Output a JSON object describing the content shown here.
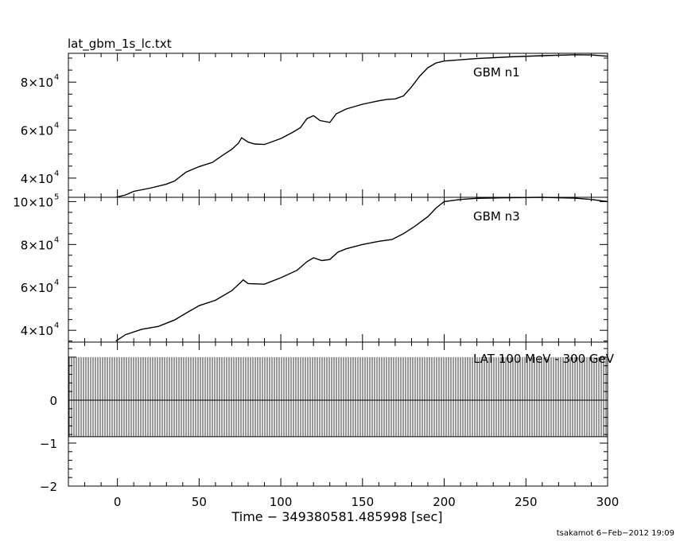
{
  "chart_data": [
    {
      "type": "line",
      "title": "lat_gbm_1s_lc.txt",
      "ylim": [
        32000,
        92000
      ],
      "yticks": [
        {
          "value": 40000,
          "mantissa": "4",
          "exp": "4"
        },
        {
          "value": 60000,
          "mantissa": "6",
          "exp": "4"
        },
        {
          "value": 80000,
          "mantissa": "8",
          "exp": "4"
        }
      ],
      "series": [
        {
          "name": "GBM n1",
          "points": [
            [
              -1,
              31000
            ],
            [
              5,
              33000
            ],
            [
              10,
              34500
            ],
            [
              20,
              35800
            ],
            [
              30,
              37500
            ],
            [
              35,
              38800
            ],
            [
              42,
              42500
            ],
            [
              50,
              44800
            ],
            [
              58,
              46500
            ],
            [
              65,
              49800
            ],
            [
              70,
              52000
            ],
            [
              74,
              54500
            ],
            [
              76,
              56800
            ],
            [
              80,
              55000
            ],
            [
              84,
              54200
            ],
            [
              90,
              54000
            ],
            [
              100,
              56500
            ],
            [
              107,
              59000
            ],
            [
              112,
              61000
            ],
            [
              116,
              64800
            ],
            [
              120,
              66000
            ],
            [
              124,
              64000
            ],
            [
              130,
              63200
            ],
            [
              134,
              66800
            ],
            [
              140,
              68800
            ],
            [
              150,
              70800
            ],
            [
              160,
              72200
            ],
            [
              165,
              72800
            ],
            [
              170,
              73000
            ],
            [
              175,
              74200
            ],
            [
              180,
              78000
            ],
            [
              185,
              82500
            ],
            [
              190,
              86000
            ],
            [
              195,
              88000
            ],
            [
              200,
              88800
            ],
            [
              220,
              89800
            ],
            [
              240,
              90500
            ],
            [
              260,
              91000
            ],
            [
              280,
              91400
            ],
            [
              290,
              91300
            ],
            [
              300,
              90800
            ]
          ]
        }
      ]
    },
    {
      "type": "line",
      "ylim": [
        34500,
        102000
      ],
      "yticks": [
        {
          "value": 40000,
          "mantissa": "4",
          "exp": "4"
        },
        {
          "value": 60000,
          "mantissa": "6",
          "exp": "4"
        },
        {
          "value": 80000,
          "mantissa": "8",
          "exp": "4"
        },
        {
          "value": 100000,
          "mantissa": "10",
          "exp": "5"
        }
      ],
      "series": [
        {
          "name": "GBM n3",
          "points": [
            [
              -1,
              35000
            ],
            [
              5,
              38000
            ],
            [
              15,
              40500
            ],
            [
              25,
              41800
            ],
            [
              35,
              44800
            ],
            [
              42,
              48000
            ],
            [
              50,
              51500
            ],
            [
              60,
              54000
            ],
            [
              70,
              58500
            ],
            [
              75,
              62000
            ],
            [
              77,
              63500
            ],
            [
              80,
              61800
            ],
            [
              90,
              61500
            ],
            [
              100,
              64500
            ],
            [
              110,
              68000
            ],
            [
              116,
              72000
            ],
            [
              120,
              73800
            ],
            [
              125,
              72500
            ],
            [
              130,
              73000
            ],
            [
              135,
              76500
            ],
            [
              140,
              78000
            ],
            [
              150,
              80000
            ],
            [
              160,
              81500
            ],
            [
              168,
              82300
            ],
            [
              175,
              85000
            ],
            [
              182,
              88500
            ],
            [
              190,
              93000
            ],
            [
              195,
              97000
            ],
            [
              200,
              100000
            ],
            [
              210,
              101000
            ],
            [
              220,
              101500
            ],
            [
              240,
              101800
            ],
            [
              260,
              102000
            ],
            [
              280,
              101600
            ],
            [
              290,
              101000
            ],
            [
              300,
              100000
            ]
          ]
        }
      ]
    },
    {
      "type": "bar",
      "series_label": "LAT 100 MeV - 300 GeV",
      "ylim": [
        -2,
        1.35
      ],
      "yticks": [
        {
          "value": -2,
          "label": "−2"
        },
        {
          "value": -1,
          "label": "−1"
        },
        {
          "value": 0,
          "label": "0"
        }
      ],
      "band": {
        "lower": -0.85,
        "upper": 1.0
      }
    }
  ],
  "x_axis": {
    "label": "Time − 349380581.485998 [sec]",
    "xlim": [
      -30,
      300
    ],
    "ticks": [
      {
        "value": 0,
        "label": "0"
      },
      {
        "value": 50,
        "label": "50"
      },
      {
        "value": 100,
        "label": "100"
      },
      {
        "value": 150,
        "label": "150"
      },
      {
        "value": 200,
        "label": "200"
      },
      {
        "value": 250,
        "label": "250"
      },
      {
        "value": 300,
        "label": "300"
      }
    ]
  },
  "footer": "tsakamot  6−Feb−2012 19:09"
}
